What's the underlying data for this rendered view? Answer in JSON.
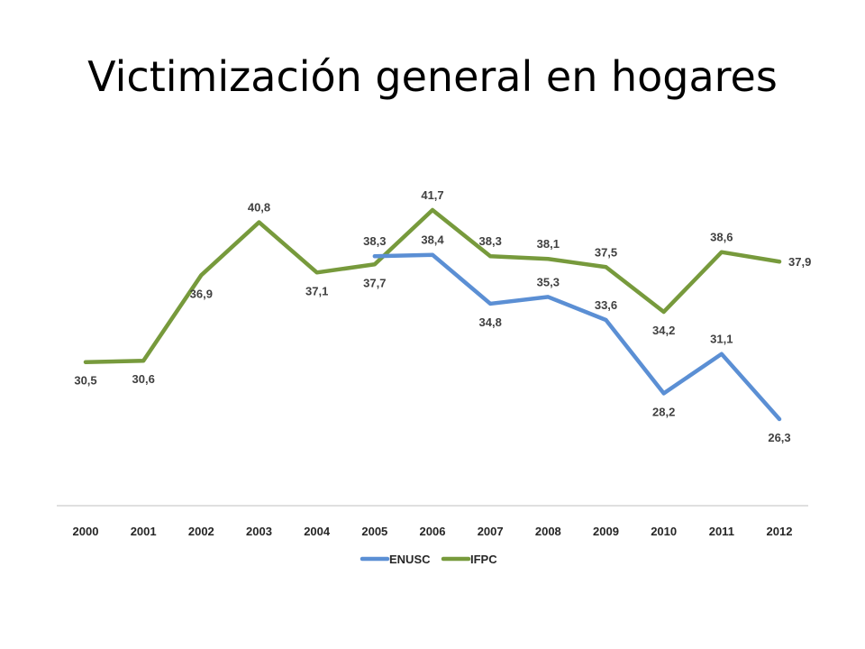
{
  "title": "Victimización general en hogares",
  "chart_data": {
    "type": "line",
    "categories": [
      "2000",
      "2001",
      "2002",
      "2003",
      "2004",
      "2005",
      "2006",
      "2007",
      "2008",
      "2009",
      "2010",
      "2011",
      "2012"
    ],
    "ylim": [
      20,
      45
    ],
    "grid": false,
    "legend": "bottom",
    "series": [
      {
        "name": "ENUSC",
        "color": "#5B8FD4",
        "values": [
          null,
          null,
          null,
          null,
          null,
          38.3,
          38.4,
          34.8,
          35.3,
          33.6,
          28.2,
          31.1,
          26.3
        ],
        "labels": [
          null,
          null,
          null,
          null,
          null,
          "38,3",
          "38,4",
          "34,8",
          "35,3",
          "33,6",
          "28,2",
          "31,1",
          "26,3"
        ],
        "label_pos": [
          null,
          null,
          null,
          null,
          null,
          "above",
          "above",
          "below",
          "above",
          "above",
          "below",
          "above",
          "below"
        ]
      },
      {
        "name": "IFPC",
        "color": "#779A3C",
        "values": [
          30.5,
          30.6,
          36.9,
          40.8,
          37.1,
          37.7,
          41.7,
          38.3,
          38.1,
          37.5,
          34.2,
          38.6,
          37.9
        ],
        "labels": [
          "30,5",
          "30,6",
          "36,9",
          "40,8",
          "37,1",
          "37,7",
          "41,7",
          "38,3",
          "38,1",
          "37,5",
          "34,2",
          "38,6",
          "37,9"
        ],
        "label_pos": [
          "below",
          "below",
          "below",
          "above",
          "below",
          "below",
          "above",
          "above",
          "above",
          "above",
          "below",
          "above",
          "right"
        ]
      }
    ]
  }
}
